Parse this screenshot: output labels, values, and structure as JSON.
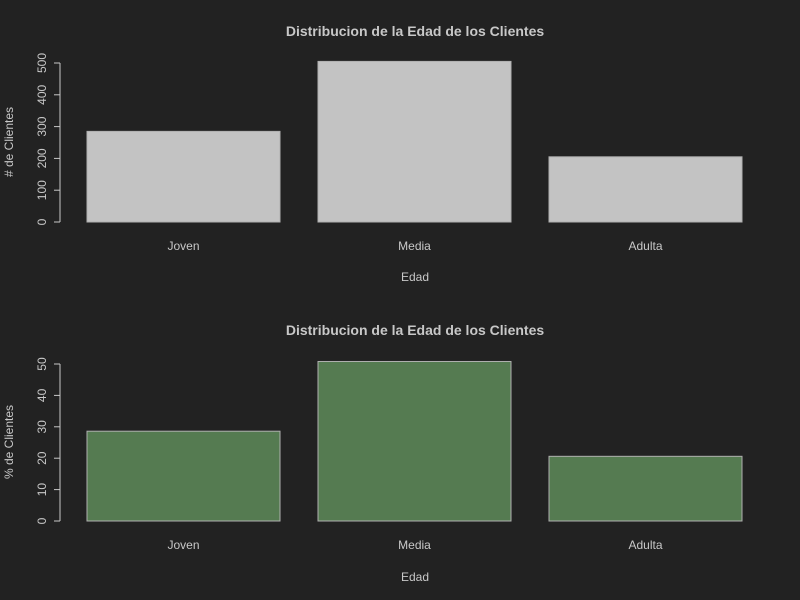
{
  "colors": {
    "background": "#222222",
    "text": "#c8c8c8",
    "bar_top": "#c3c3c3",
    "bar_bottom": "#557b51",
    "bar_border": "#b0b0b0"
  },
  "chart_data": [
    {
      "type": "bar",
      "title": "Distribucion de la Edad de los Clientes",
      "xlabel": "Edad",
      "ylabel": "# de Clientes",
      "categories": [
        "Joven",
        "Media",
        "Adulta"
      ],
      "values": [
        285,
        505,
        205
      ],
      "ylim": [
        0,
        500
      ],
      "yticks": [
        0,
        100,
        200,
        300,
        400,
        500
      ],
      "grid": false
    },
    {
      "type": "bar",
      "title": "Distribucion de la Edad de los Clientes",
      "xlabel": "Edad",
      "ylabel": "% de Clientes",
      "categories": [
        "Joven",
        "Media",
        "Adulta"
      ],
      "values": [
        28.6,
        50.8,
        20.6
      ],
      "ylim": [
        0,
        50
      ],
      "yticks": [
        0,
        10,
        20,
        30,
        40,
        50
      ],
      "grid": false
    }
  ]
}
